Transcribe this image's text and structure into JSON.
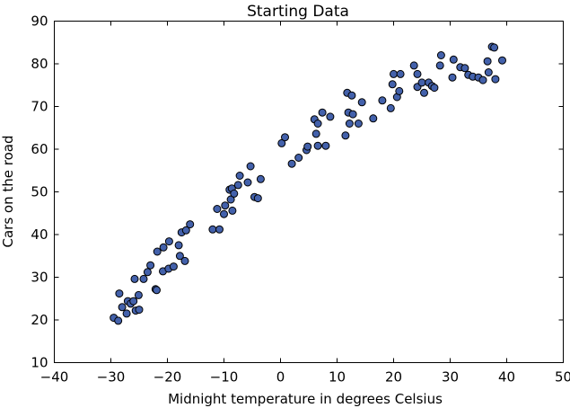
{
  "chart_data": {
    "type": "scatter",
    "title": "Starting Data",
    "xlabel": "Midnight temperature in degrees Celsius",
    "ylabel": "Cars on the road",
    "xlim": [
      -40,
      50
    ],
    "ylim": [
      10,
      90
    ],
    "xticks": [
      -40,
      -30,
      -20,
      -10,
      0,
      10,
      20,
      30,
      40,
      50
    ],
    "yticks": [
      10,
      20,
      30,
      40,
      50,
      60,
      70,
      80,
      90
    ],
    "xtick_labels": [
      "−40",
      "−30",
      "−20",
      "−10",
      "0",
      "10",
      "20",
      "30",
      "40",
      "50"
    ],
    "ytick_labels": [
      "10",
      "20",
      "30",
      "40",
      "50",
      "60",
      "70",
      "80",
      "90"
    ],
    "grid": false,
    "legend": "none",
    "marker_color": "#4361ab",
    "edge_color": "#000000",
    "points": [
      [
        -29.5,
        20.5
      ],
      [
        -28.7,
        19.8
      ],
      [
        -28.5,
        26.2
      ],
      [
        -28.0,
        23.0
      ],
      [
        -27.2,
        21.5
      ],
      [
        -27.0,
        24.4
      ],
      [
        -26.5,
        23.8
      ],
      [
        -26.0,
        24.4
      ],
      [
        -25.8,
        29.6
      ],
      [
        -25.6,
        22.2
      ],
      [
        -25.1,
        25.8
      ],
      [
        -25.0,
        22.4
      ],
      [
        -24.2,
        29.6
      ],
      [
        -23.5,
        31.2
      ],
      [
        -23.0,
        32.8
      ],
      [
        -22.1,
        27.2
      ],
      [
        -21.9,
        27.0
      ],
      [
        -21.8,
        36.0
      ],
      [
        -20.8,
        31.4
      ],
      [
        -20.7,
        37.0
      ],
      [
        -19.8,
        32.0
      ],
      [
        -19.7,
        38.4
      ],
      [
        -18.9,
        32.5
      ],
      [
        -18.0,
        37.5
      ],
      [
        -17.8,
        35.0
      ],
      [
        -17.5,
        40.5
      ],
      [
        -16.9,
        33.8
      ],
      [
        -16.7,
        41.0
      ],
      [
        -16.0,
        42.4
      ],
      [
        -12.0,
        41.2
      ],
      [
        -11.2,
        46.0
      ],
      [
        -10.8,
        41.2
      ],
      [
        -10.0,
        44.8
      ],
      [
        -9.8,
        46.8
      ],
      [
        -9.0,
        50.5
      ],
      [
        -8.8,
        48.2
      ],
      [
        -8.6,
        50.8
      ],
      [
        -8.5,
        45.6
      ],
      [
        -8.2,
        49.6
      ],
      [
        -7.5,
        51.6
      ],
      [
        -7.2,
        53.8
      ],
      [
        -5.8,
        52.2
      ],
      [
        -5.3,
        56.0
      ],
      [
        -4.6,
        48.8
      ],
      [
        -4.0,
        48.5
      ],
      [
        -3.5,
        53.0
      ],
      [
        0.2,
        61.4
      ],
      [
        0.8,
        62.8
      ],
      [
        2.0,
        56.6
      ],
      [
        3.2,
        58.0
      ],
      [
        4.6,
        59.8
      ],
      [
        4.8,
        60.6
      ],
      [
        6.0,
        67.0
      ],
      [
        6.3,
        63.6
      ],
      [
        6.6,
        66.0
      ],
      [
        6.6,
        60.8
      ],
      [
        7.4,
        68.6
      ],
      [
        8.0,
        60.8
      ],
      [
        8.8,
        67.6
      ],
      [
        11.5,
        63.2
      ],
      [
        11.8,
        73.2
      ],
      [
        12.0,
        68.6
      ],
      [
        12.2,
        66.0
      ],
      [
        12.6,
        72.6
      ],
      [
        12.8,
        68.2
      ],
      [
        13.8,
        66.0
      ],
      [
        14.4,
        71.0
      ],
      [
        16.4,
        67.2
      ],
      [
        18.0,
        71.4
      ],
      [
        19.5,
        69.6
      ],
      [
        19.8,
        75.2
      ],
      [
        20.0,
        77.6
      ],
      [
        20.6,
        72.2
      ],
      [
        21.0,
        73.6
      ],
      [
        21.2,
        77.6
      ],
      [
        23.6,
        79.6
      ],
      [
        24.2,
        77.6
      ],
      [
        24.2,
        74.6
      ],
      [
        25.0,
        75.6
      ],
      [
        25.4,
        73.2
      ],
      [
        26.2,
        75.6
      ],
      [
        26.8,
        74.8
      ],
      [
        27.2,
        74.4
      ],
      [
        28.2,
        79.6
      ],
      [
        28.4,
        82.0
      ],
      [
        30.4,
        76.8
      ],
      [
        30.6,
        81.0
      ],
      [
        31.8,
        79.2
      ],
      [
        32.6,
        79.0
      ],
      [
        33.2,
        77.4
      ],
      [
        34.0,
        77.0
      ],
      [
        35.0,
        76.8
      ],
      [
        35.8,
        76.2
      ],
      [
        36.6,
        80.6
      ],
      [
        36.8,
        78.0
      ],
      [
        37.4,
        84.0
      ],
      [
        37.8,
        83.8
      ],
      [
        38.0,
        76.4
      ],
      [
        39.2,
        80.8
      ]
    ]
  }
}
